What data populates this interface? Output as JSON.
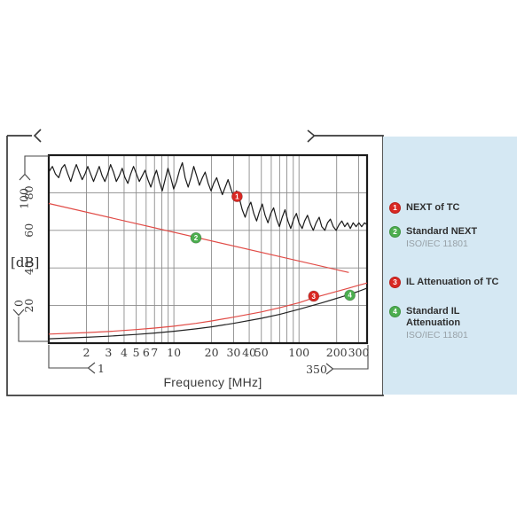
{
  "figure": {
    "background_color": "#ffffff",
    "legend_panel_color": "#d5e8f3",
    "frame_color": "#3a3a3a",
    "grid_color": "#8c8c8c",
    "axis_color": "#1b1b1b",
    "red_accent": "#d92823",
    "green_accent": "#4cae4f"
  },
  "legend": {
    "items": [
      {
        "number": "1",
        "label": "NEXT of TC",
        "sublabel": "",
        "color": "#d92823"
      },
      {
        "number": "2",
        "label": "Standard NEXT",
        "sublabel": "ISO/IEC 11801",
        "color": "#4cae4f"
      },
      {
        "number": "3",
        "label": "IL Attenuation of TC",
        "sublabel": "",
        "color": "#d92823"
      },
      {
        "number": "4",
        "label": "Standard IL Attenuation",
        "sublabel": "ISO/IEC 11801",
        "color": "#4cae4f"
      }
    ]
  },
  "chart_data": {
    "type": "line",
    "xlabel": "Frequency [MHz]",
    "ylabel": "[dB]",
    "x_scale": "log",
    "xlim": [
      1,
      350
    ],
    "ylim": [
      0,
      100
    ],
    "grid": true,
    "x_gridlines": [
      2,
      3,
      4,
      5,
      6,
      7,
      8,
      9,
      10,
      20,
      30,
      40,
      50,
      60,
      70,
      80,
      90,
      100,
      200,
      300
    ],
    "x_tick_labels": [
      "2",
      "3",
      "4",
      "5",
      "6",
      "7",
      "10",
      "20",
      "30",
      "40",
      "50",
      "100",
      "200",
      "300"
    ],
    "x_tick_values": [
      2,
      3,
      4,
      5,
      6,
      7,
      10,
      20,
      30,
      40,
      50,
      100,
      200,
      300
    ],
    "y_gridlines": [
      20,
      40,
      60,
      80
    ],
    "y_tick_labels": [
      "20",
      "40",
      "60",
      "80"
    ],
    "axis_end_labels": {
      "x_start": "1",
      "x_end": "350",
      "y_bottom": "0",
      "y_top": "100"
    },
    "series": [
      {
        "name": "NEXT of TC",
        "color": "#1a1a1a",
        "width": 1.2,
        "points": [
          [
            1,
            91
          ],
          [
            1.07,
            94
          ],
          [
            1.13,
            90
          ],
          [
            1.2,
            88
          ],
          [
            1.27,
            93
          ],
          [
            1.34,
            95
          ],
          [
            1.42,
            90
          ],
          [
            1.5,
            86
          ],
          [
            1.58,
            91
          ],
          [
            1.66,
            95
          ],
          [
            1.75,
            91
          ],
          [
            1.85,
            87
          ],
          [
            1.95,
            90
          ],
          [
            2.05,
            94
          ],
          [
            2.16,
            90
          ],
          [
            2.28,
            86
          ],
          [
            2.4,
            90
          ],
          [
            2.53,
            94
          ],
          [
            2.67,
            89
          ],
          [
            2.81,
            86
          ],
          [
            2.96,
            90
          ],
          [
            3.12,
            95
          ],
          [
            3.29,
            91
          ],
          [
            3.47,
            86
          ],
          [
            3.66,
            89
          ],
          [
            3.86,
            93
          ],
          [
            4.07,
            88
          ],
          [
            4.29,
            85
          ],
          [
            4.52,
            90
          ],
          [
            4.76,
            94
          ],
          [
            5.02,
            90
          ],
          [
            5.29,
            86
          ],
          [
            5.58,
            89
          ],
          [
            5.88,
            92
          ],
          [
            6.2,
            87
          ],
          [
            6.54,
            83
          ],
          [
            6.89,
            88
          ],
          [
            7.26,
            92
          ],
          [
            7.65,
            86
          ],
          [
            8.07,
            81
          ],
          [
            8.5,
            87
          ],
          [
            8.96,
            93
          ],
          [
            9.45,
            88
          ],
          [
            9.96,
            82
          ],
          [
            10.5,
            86
          ],
          [
            11.1,
            92
          ],
          [
            11.7,
            96
          ],
          [
            12.3,
            88
          ],
          [
            13,
            83
          ],
          [
            13.7,
            88
          ],
          [
            14.4,
            94
          ],
          [
            15.2,
            89
          ],
          [
            16,
            84
          ],
          [
            16.9,
            88
          ],
          [
            17.8,
            91
          ],
          [
            18.8,
            85
          ],
          [
            19.8,
            81
          ],
          [
            20.8,
            85
          ],
          [
            22,
            88
          ],
          [
            23.2,
            83
          ],
          [
            24.4,
            79
          ],
          [
            25.7,
            83
          ],
          [
            27.1,
            87
          ],
          [
            28.6,
            82
          ],
          [
            30.1,
            78
          ],
          [
            31.7,
            81
          ],
          [
            33.4,
            77
          ],
          [
            35.2,
            71
          ],
          [
            37.1,
            67
          ],
          [
            39.1,
            72
          ],
          [
            41.2,
            75
          ],
          [
            43.5,
            69
          ],
          [
            45.8,
            65
          ],
          [
            48.3,
            70
          ],
          [
            50.9,
            74
          ],
          [
            53.6,
            68
          ],
          [
            56.5,
            64
          ],
          [
            59.5,
            69
          ],
          [
            62.7,
            72
          ],
          [
            66.1,
            66
          ],
          [
            69.7,
            62
          ],
          [
            73.4,
            67
          ],
          [
            77.4,
            71
          ],
          [
            81.5,
            65
          ],
          [
            85.9,
            61
          ],
          [
            90.6,
            66
          ],
          [
            95.4,
            69
          ],
          [
            100,
            64
          ],
          [
            106,
            61
          ],
          [
            111,
            65
          ],
          [
            117,
            68
          ],
          [
            124,
            63
          ],
          [
            130,
            60
          ],
          [
            137,
            64
          ],
          [
            145,
            67
          ],
          [
            152,
            62
          ],
          [
            161,
            60
          ],
          [
            169,
            64
          ],
          [
            178,
            66
          ],
          [
            188,
            62
          ],
          [
            198,
            60
          ],
          [
            209,
            63
          ],
          [
            220,
            65
          ],
          [
            232,
            62
          ],
          [
            244,
            64
          ],
          [
            257,
            61
          ],
          [
            271,
            64
          ],
          [
            286,
            62
          ],
          [
            301,
            64
          ],
          [
            317,
            62
          ],
          [
            334,
            64
          ],
          [
            350,
            63
          ]
        ]
      },
      {
        "name": "Standard NEXT ISO/IEC 11801",
        "color": "#e14b46",
        "width": 1.2,
        "points": [
          [
            1,
            74.3
          ],
          [
            250,
            37.6
          ]
        ]
      },
      {
        "name": "IL Attenuation of TC",
        "color": "#e14b46",
        "width": 1.2,
        "points": [
          [
            1,
            4.8
          ],
          [
            2,
            5.6
          ],
          [
            3,
            6.2
          ],
          [
            5,
            7.2
          ],
          [
            7,
            8.0
          ],
          [
            10,
            9.0
          ],
          [
            15,
            10.5
          ],
          [
            20,
            11.8
          ],
          [
            30,
            13.8
          ],
          [
            50,
            16.6
          ],
          [
            70,
            18.8
          ],
          [
            100,
            21.5
          ],
          [
            130,
            24.0
          ],
          [
            150,
            25.2
          ],
          [
            200,
            27.5
          ],
          [
            250,
            29.3
          ],
          [
            300,
            30.8
          ],
          [
            350,
            32.0
          ]
        ]
      },
      {
        "name": "Standard IL Attenuation ISO/IEC 11801",
        "color": "#222222",
        "width": 1.2,
        "points": [
          [
            1,
            2.3
          ],
          [
            2,
            3.1
          ],
          [
            3,
            3.7
          ],
          [
            5,
            4.6
          ],
          [
            7,
            5.4
          ],
          [
            10,
            6.3
          ],
          [
            15,
            7.6
          ],
          [
            20,
            8.7
          ],
          [
            30,
            10.5
          ],
          [
            50,
            13.2
          ],
          [
            70,
            15.3
          ],
          [
            100,
            18.0
          ],
          [
            150,
            21.3
          ],
          [
            200,
            23.8
          ],
          [
            250,
            25.8
          ],
          [
            300,
            27.6
          ],
          [
            350,
            29.3
          ]
        ]
      }
    ],
    "markers": [
      {
        "number": "1",
        "f": 32,
        "db": 78,
        "color": "#d92823"
      },
      {
        "number": "2",
        "f": 15,
        "db": 56,
        "color": "#4cae4f"
      },
      {
        "number": "3",
        "f": 131,
        "db": 25,
        "color": "#d92823"
      },
      {
        "number": "4",
        "f": 255,
        "db": 25.5,
        "color": "#4cae4f"
      }
    ]
  }
}
